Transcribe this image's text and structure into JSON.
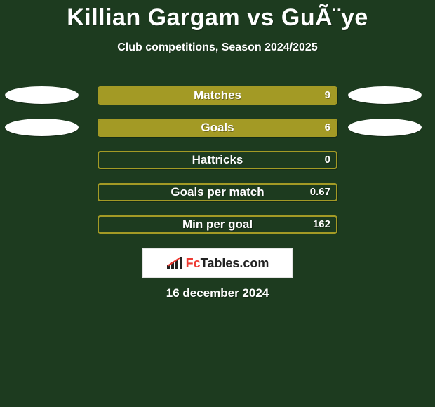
{
  "background_color": "#1d3b1f",
  "bar_outline_color": "#a39a25",
  "bar_fill_color": "#a39a25",
  "text_color": "#ffffff",
  "ellipse_color": "#ffffff",
  "title": "Killian Gargam vs GuÃ¨ye",
  "subtitle": "Club competitions, Season 2024/2025",
  "logo": {
    "brand_left": "Fc",
    "brand_right": "Tables",
    "brand_suffix": ".com"
  },
  "date": "16 december 2024",
  "rows": [
    {
      "label": "Matches",
      "value": "9",
      "fill_pct": 100,
      "left_ellipse": true,
      "right_ellipse": true
    },
    {
      "label": "Goals",
      "value": "6",
      "fill_pct": 100,
      "left_ellipse": true,
      "right_ellipse": true
    },
    {
      "label": "Hattricks",
      "value": "0",
      "fill_pct": 0,
      "left_ellipse": false,
      "right_ellipse": false
    },
    {
      "label": "Goals per match",
      "value": "0.67",
      "fill_pct": 0,
      "left_ellipse": false,
      "right_ellipse": false
    },
    {
      "label": "Min per goal",
      "value": "162",
      "fill_pct": 0,
      "left_ellipse": false,
      "right_ellipse": false
    }
  ]
}
